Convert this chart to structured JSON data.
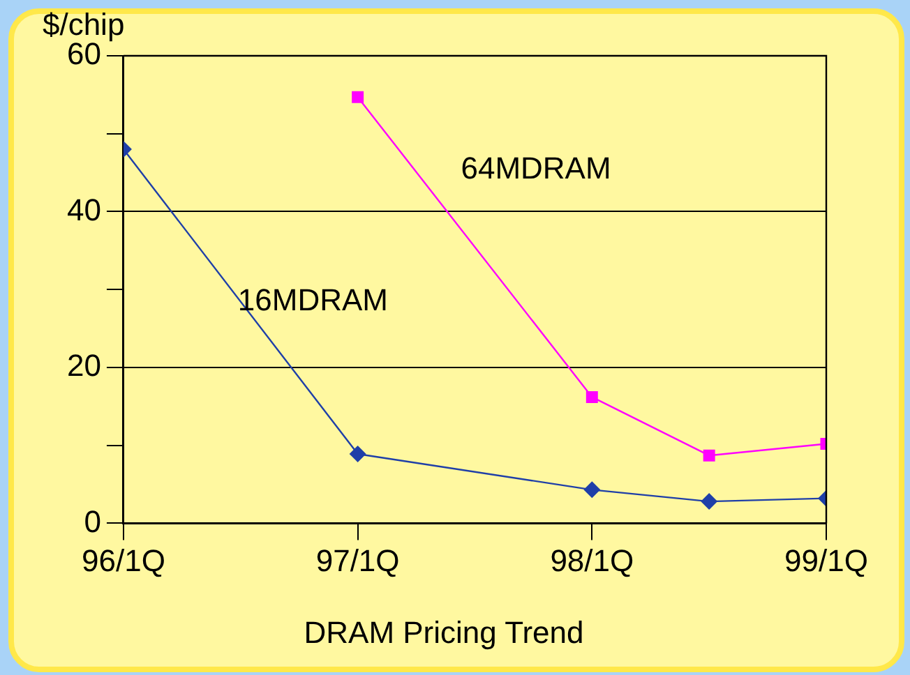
{
  "chart_data": {
    "type": "line",
    "title": "DRAM Pricing Trend",
    "ylabel": "$/chip",
    "categories": [
      "96/1Q",
      null,
      null,
      null,
      "97/1Q",
      null,
      null,
      null,
      "98/1Q",
      null,
      null,
      null,
      "99/1Q"
    ],
    "ylim": [
      0,
      60
    ],
    "yticks": [
      0,
      {
        "value": 10,
        "label": null
      },
      20,
      {
        "value": 30,
        "label": null
      },
      40,
      {
        "value": 50,
        "label": null
      },
      60
    ],
    "grid": "y",
    "legend": false,
    "series": [
      {
        "name": "16MDRAM",
        "color": "#1f3fa8",
        "marker": "diamond",
        "values": [
          48,
          null,
          null,
          null,
          8.9,
          null,
          null,
          null,
          4.3,
          null,
          2.8,
          null,
          3.2
        ]
      },
      {
        "name": "64MDRAM",
        "color": "#ff00ff",
        "marker": "square",
        "values": [
          null,
          null,
          null,
          null,
          54.7,
          null,
          null,
          null,
          16.2,
          null,
          8.7,
          null,
          10.2
        ]
      }
    ]
  }
}
